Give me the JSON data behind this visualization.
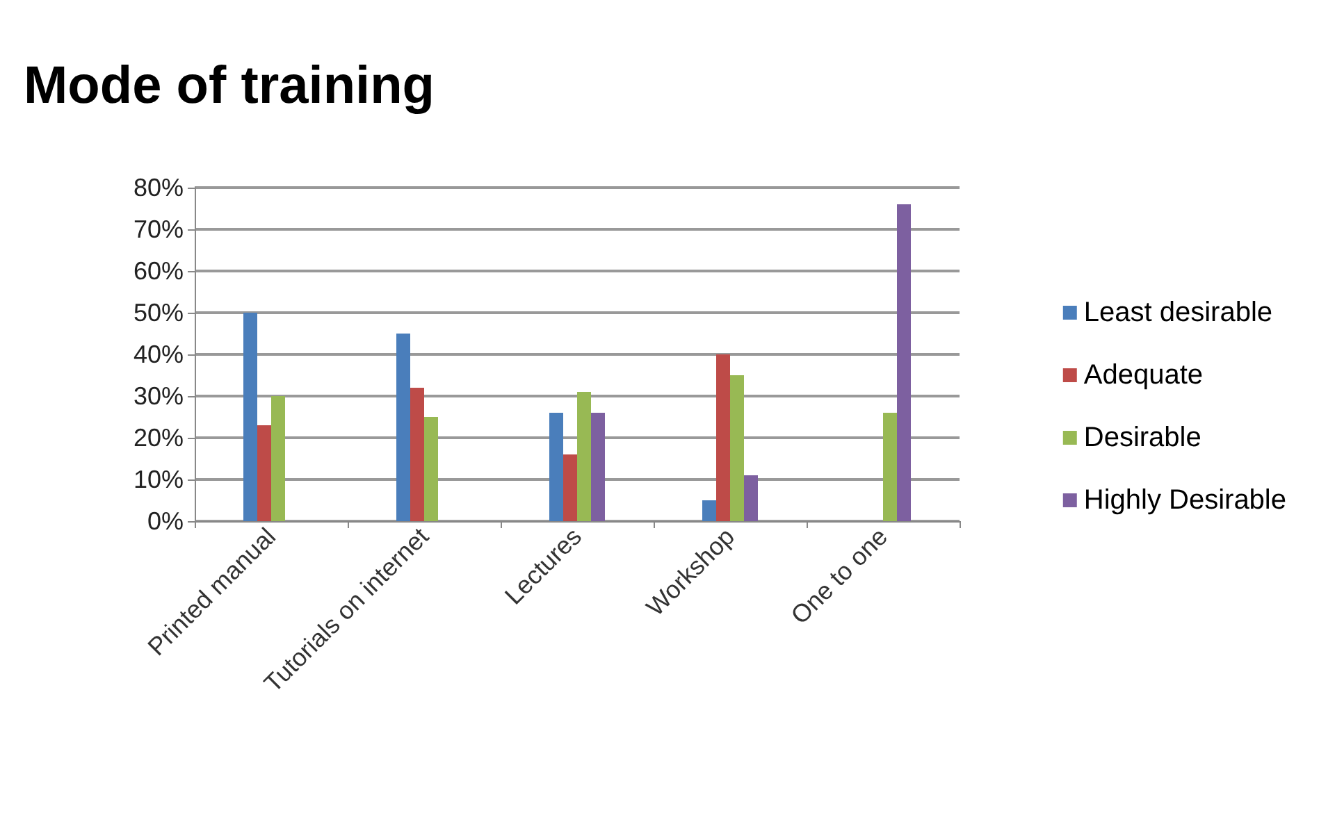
{
  "chart_data": {
    "type": "bar",
    "title": "Mode of training",
    "categories": [
      "Printed manual",
      "Tutorials on internet",
      "Lectures",
      "Workshop",
      "One to one"
    ],
    "series": [
      {
        "name": "Least desirable",
        "color": "#4a7ebb",
        "values": [
          50,
          45,
          26,
          5,
          0
        ]
      },
      {
        "name": "Adequate",
        "color": "#be4b48",
        "values": [
          23,
          32,
          16,
          40,
          0
        ]
      },
      {
        "name": "Desirable",
        "color": "#98b954",
        "values": [
          30,
          25,
          31,
          35,
          26
        ]
      },
      {
        "name": "Highly Desirable",
        "color": "#7d60a0",
        "values": [
          0,
          0,
          26,
          11,
          76
        ]
      }
    ],
    "ylim": [
      0,
      80
    ],
    "yticks": [
      {
        "value": 0,
        "label": "0%"
      },
      {
        "value": 10,
        "label": "10%"
      },
      {
        "value": 20,
        "label": "20%"
      },
      {
        "value": 30,
        "label": "30%"
      },
      {
        "value": 40,
        "label": "40%"
      },
      {
        "value": 50,
        "label": "50%"
      },
      {
        "value": 60,
        "label": "60%"
      },
      {
        "value": 70,
        "label": "70%"
      },
      {
        "value": 80,
        "label": "80%"
      }
    ],
    "grid": "y",
    "legend": "right"
  }
}
